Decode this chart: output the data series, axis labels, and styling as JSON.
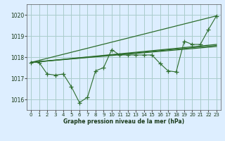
{
  "background_color": "#ddeeff",
  "grid_color": "#aacccc",
  "line_color": "#2d6e2d",
  "xlabel": "Graphe pression niveau de la mer (hPa)",
  "xlim": [
    -0.5,
    23.5
  ],
  "ylim": [
    1015.5,
    1020.5
  ],
  "yticks": [
    1016,
    1017,
    1018,
    1019,
    1020
  ],
  "xticks": [
    0,
    1,
    2,
    3,
    4,
    5,
    6,
    7,
    8,
    9,
    10,
    11,
    12,
    13,
    14,
    15,
    16,
    17,
    18,
    19,
    20,
    21,
    22,
    23
  ],
  "line_volatile": {
    "x": [
      0,
      1,
      2,
      3,
      4,
      5,
      6,
      7,
      8,
      9,
      10,
      11,
      12,
      13,
      14,
      15,
      16,
      17,
      18,
      19,
      20,
      21,
      22,
      23
    ],
    "y": [
      1017.75,
      1017.75,
      1017.2,
      1017.15,
      1017.2,
      1016.6,
      1015.85,
      1016.1,
      1017.35,
      1017.5,
      1018.35,
      1018.1,
      1018.1,
      1018.1,
      1018.1,
      1018.1,
      1017.7,
      1017.35,
      1017.3,
      1018.75,
      1018.6,
      1018.6,
      1019.3,
      1019.95
    ]
  },
  "line_straight": {
    "x": [
      0,
      23
    ],
    "y": [
      1017.75,
      1019.95
    ]
  },
  "line_trend1": {
    "x": [
      0,
      23
    ],
    "y": [
      1017.75,
      1018.6
    ]
  },
  "line_trend2": {
    "x": [
      0,
      23
    ],
    "y": [
      1017.75,
      1018.55
    ]
  },
  "line_trend3": {
    "x": [
      0,
      23
    ],
    "y": [
      1017.75,
      1018.5
    ]
  }
}
